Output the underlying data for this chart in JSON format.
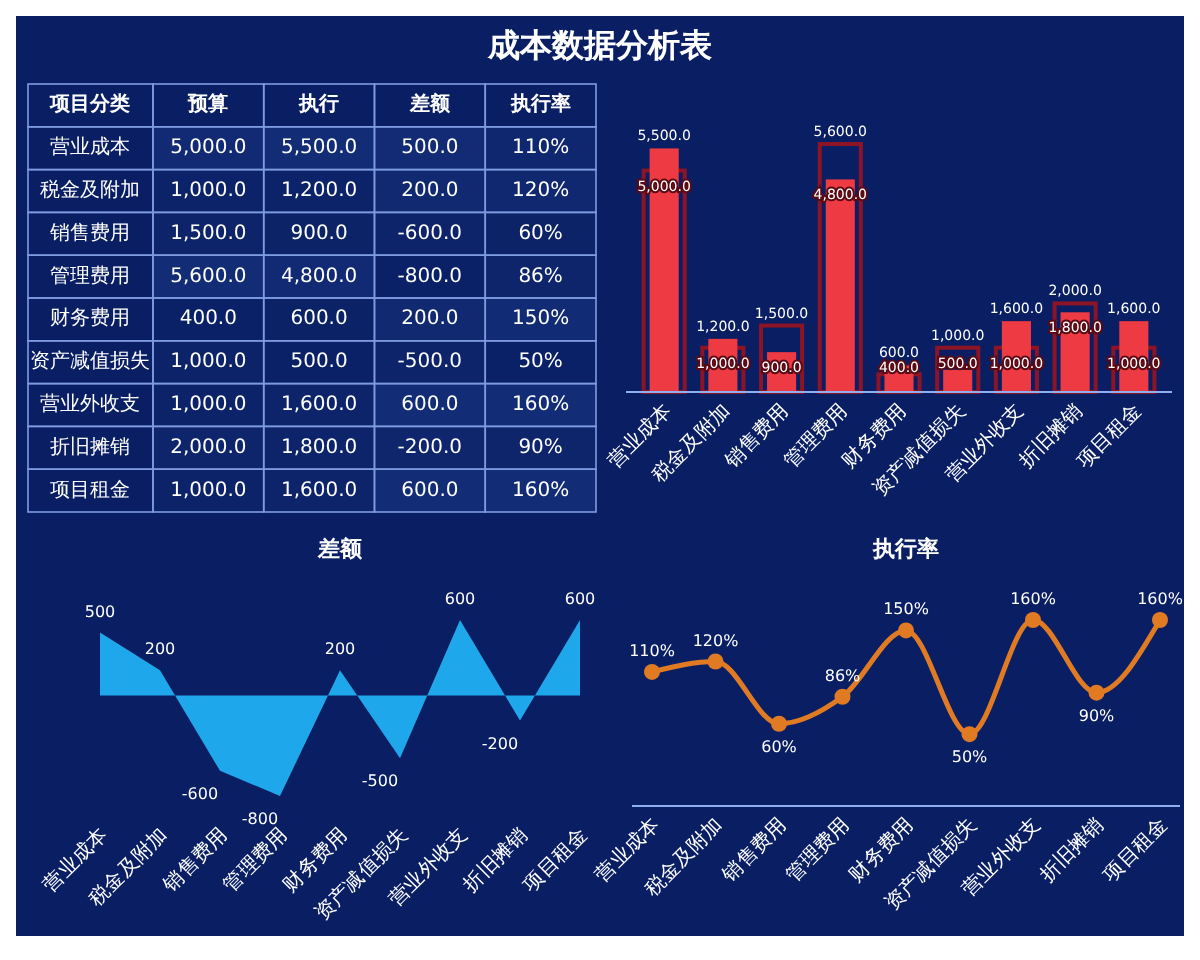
{
  "chart_data": [
    {
      "type": "heatmap",
      "title": "成本数据分析表",
      "ylabel": "项目分类",
      "categories": [
        "预算",
        "执行",
        "差额",
        "执行率"
      ],
      "y_categories": [
        "营业成本",
        "税金及附加",
        "销售费用",
        "管理费用",
        "财务费用",
        "资产减值损失",
        "营业外收支",
        "折旧摊销",
        "项目租金"
      ],
      "cells": [
        [
          5000,
          5500,
          500,
          110
        ],
        [
          1000,
          1200,
          200,
          120
        ],
        [
          1500,
          900,
          -600,
          60
        ],
        [
          5600,
          4800,
          -800,
          86
        ],
        [
          400,
          600,
          200,
          150
        ],
        [
          1000,
          500,
          -500,
          50
        ],
        [
          1000,
          1600,
          600,
          160
        ],
        [
          2000,
          1800,
          -200,
          90
        ],
        [
          1000,
          1600,
          600,
          160
        ]
      ],
      "cell_labels": [
        [
          "5,000.0",
          "5,500.0",
          "500.0",
          "110%"
        ],
        [
          "1,000.0",
          "1,200.0",
          "200.0",
          "120%"
        ],
        [
          "1,500.0",
          "900.0",
          "-600.0",
          "60%"
        ],
        [
          "5,600.0",
          "4,800.0",
          "-800.0",
          "86%"
        ],
        [
          "400.0",
          "600.0",
          "200.0",
          "150%"
        ],
        [
          "1,000.0",
          "500.0",
          "-500.0",
          "50%"
        ],
        [
          "1,000.0",
          "1,600.0",
          "600.0",
          "160%"
        ],
        [
          "2,000.0",
          "1,800.0",
          "-200.0",
          "90%"
        ],
        [
          "1,000.0",
          "1,600.0",
          "600.0",
          "160%"
        ]
      ]
    },
    {
      "type": "bar",
      "categories": [
        "营业成本",
        "税金及附加",
        "销售费用",
        "管理费用",
        "财务费用",
        "资产减值损失",
        "营业外收支",
        "折旧摊销",
        "项目租金"
      ],
      "series": [
        {
          "color": "#8c1426",
          "values": [
            5000,
            1000,
            1500,
            5600,
            400,
            1000,
            1000,
            2000,
            1000
          ],
          "value_labels": [
            "5,000.0",
            "1,000.0",
            "1,500.0",
            "5,600.0",
            "400.0",
            "1,000.0",
            "1,000.0",
            "2,000.0",
            "1,000.0"
          ]
        },
        {
          "color": "#ee3a42",
          "values": [
            5500,
            1200,
            900,
            4800,
            600,
            500,
            1600,
            1800,
            1600
          ],
          "value_labels": [
            "5,500.0",
            "1,200.0",
            "900.0",
            "4,800.0",
            "600.0",
            "500.0",
            "1,600.0",
            "1,800.0",
            "1,600.0"
          ]
        }
      ]
    },
    {
      "type": "area",
      "title": "差额",
      "categories": [
        "营业成本",
        "税金及附加",
        "销售费用",
        "管理费用",
        "财务费用",
        "资产减值损失",
        "营业外收支",
        "折旧摊销",
        "项目租金"
      ],
      "values": [
        500,
        200,
        -600,
        -800,
        200,
        -500,
        600,
        -200,
        600
      ],
      "color": "#1ea7ea",
      "data_labels": true
    },
    {
      "type": "line",
      "title": "执行率",
      "categories": [
        "营业成本",
        "税金及附加",
        "销售费用",
        "管理费用",
        "财务费用",
        "资产减值损失",
        "营业外收支",
        "折旧摊销",
        "项目租金"
      ],
      "values": [
        110,
        120,
        60,
        86,
        150,
        50,
        160,
        90,
        160
      ],
      "value_labels": [
        "110%",
        "120%",
        "60%",
        "86%",
        "150%",
        "50%",
        "160%",
        "90%",
        "160%"
      ],
      "color": "#e07b24",
      "marker": "circle"
    }
  ]
}
